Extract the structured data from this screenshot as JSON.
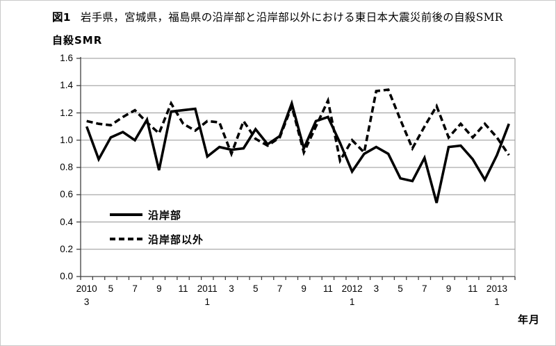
{
  "figure": {
    "label": "図1",
    "title": "岩手県，宮城県，福島県の沿岸部と沿岸部以外における東日本大震災前後の自殺SMR",
    "y_axis_title": "自殺SMR",
    "x_axis_title": "年月"
  },
  "chart_data": {
    "type": "line",
    "title": "岩手県，宮城県，福島県の沿岸部と沿岸部以外における東日本大震災前後の自殺SMR",
    "xlabel": "年月",
    "ylabel": "自殺SMR",
    "ylim": [
      0.0,
      1.6
    ],
    "y_tick_step": 0.2,
    "y_tick_labels": [
      "0.0",
      "0.2",
      "0.4",
      "0.6",
      "0.8",
      "1.0",
      "1.2",
      "1.4",
      "1.6"
    ],
    "grid": true,
    "legend_position": "inside-left",
    "colors": {
      "line": "#000000",
      "grid": "#969696",
      "axis": "#404040"
    },
    "x": [
      "2010/3",
      "2010/4",
      "2010/5",
      "2010/6",
      "2010/7",
      "2010/8",
      "2010/9",
      "2010/10",
      "2010/11",
      "2010/12",
      "2011/1",
      "2011/2",
      "2011/3",
      "2011/4",
      "2011/5",
      "2011/6",
      "2011/7",
      "2011/8",
      "2011/9",
      "2011/10",
      "2011/11",
      "2011/12",
      "2012/1",
      "2012/2",
      "2012/3",
      "2012/4",
      "2012/5",
      "2012/6",
      "2012/7",
      "2012/8",
      "2012/9",
      "2012/10",
      "2012/11",
      "2012/12",
      "2013/1",
      "2013/2"
    ],
    "x_tick_labels": [
      {
        "index": 0,
        "line1": "2010",
        "line2": "3"
      },
      {
        "index": 2,
        "line1": "5",
        "line2": ""
      },
      {
        "index": 4,
        "line1": "7",
        "line2": ""
      },
      {
        "index": 6,
        "line1": "9",
        "line2": ""
      },
      {
        "index": 8,
        "line1": "11",
        "line2": ""
      },
      {
        "index": 10,
        "line1": "2011",
        "line2": "1"
      },
      {
        "index": 12,
        "line1": "3",
        "line2": ""
      },
      {
        "index": 14,
        "line1": "5",
        "line2": ""
      },
      {
        "index": 16,
        "line1": "7",
        "line2": ""
      },
      {
        "index": 18,
        "line1": "9",
        "line2": ""
      },
      {
        "index": 20,
        "line1": "11",
        "line2": ""
      },
      {
        "index": 22,
        "line1": "2012",
        "line2": "1"
      },
      {
        "index": 24,
        "line1": "3",
        "line2": ""
      },
      {
        "index": 26,
        "line1": "5",
        "line2": ""
      },
      {
        "index": 28,
        "line1": "7",
        "line2": ""
      },
      {
        "index": 30,
        "line1": "9",
        "line2": ""
      },
      {
        "index": 32,
        "line1": "11",
        "line2": ""
      },
      {
        "index": 34,
        "line1": "2013",
        "line2": "1"
      }
    ],
    "series": [
      {
        "name": "沿岸部",
        "style": "solid",
        "values": [
          1.1,
          0.86,
          1.02,
          1.06,
          1.0,
          1.15,
          0.78,
          1.21,
          1.22,
          1.23,
          0.88,
          0.95,
          0.93,
          0.94,
          1.08,
          0.97,
          1.03,
          1.27,
          0.94,
          1.14,
          1.17,
          0.98,
          0.77,
          0.9,
          0.95,
          0.9,
          0.72,
          0.7,
          0.87,
          0.54,
          0.95,
          0.96,
          0.86,
          0.71,
          0.89,
          1.12
        ]
      },
      {
        "name": "沿岸部以外",
        "style": "dashed",
        "values": [
          1.14,
          1.12,
          1.11,
          1.17,
          1.22,
          1.13,
          1.05,
          1.27,
          1.12,
          1.07,
          1.14,
          1.13,
          0.9,
          1.14,
          1.01,
          0.96,
          1.02,
          1.25,
          0.91,
          1.1,
          1.29,
          0.85,
          1.0,
          0.91,
          1.36,
          1.37,
          1.15,
          0.94,
          1.1,
          1.25,
          1.02,
          1.12,
          1.02,
          1.12,
          1.02,
          0.89
        ]
      }
    ]
  }
}
